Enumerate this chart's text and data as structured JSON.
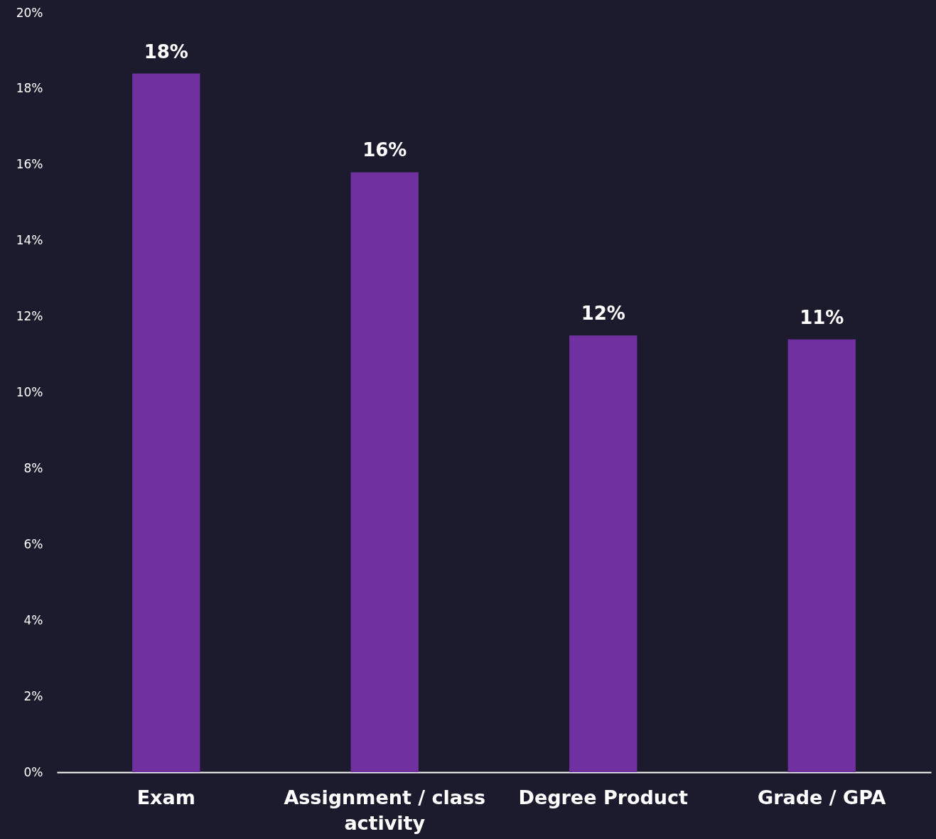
{
  "chart_data": {
    "type": "bar",
    "categories": [
      "Exam",
      "Assignment / class activity",
      "Degree Product",
      "Grade / GPA"
    ],
    "values": [
      18.4,
      15.8,
      11.5,
      11.4
    ],
    "value_labels": [
      "18%",
      "16%",
      "12%",
      "11%"
    ],
    "color": "#7030a0",
    "ylim": [
      0,
      20
    ],
    "yticks": [
      {
        "value": 0,
        "label": "0%"
      },
      {
        "value": 2,
        "label": "2%"
      },
      {
        "value": 4,
        "label": "4%"
      },
      {
        "value": 6,
        "label": "6%"
      },
      {
        "value": 8,
        "label": "8%"
      },
      {
        "value": 10,
        "label": "10%"
      },
      {
        "value": 12,
        "label": "12%"
      },
      {
        "value": 14,
        "label": "14%"
      },
      {
        "value": 16,
        "label": "16%"
      },
      {
        "value": 18,
        "label": "18%"
      },
      {
        "value": 20,
        "label": "20%"
      }
    ],
    "grid": false
  }
}
